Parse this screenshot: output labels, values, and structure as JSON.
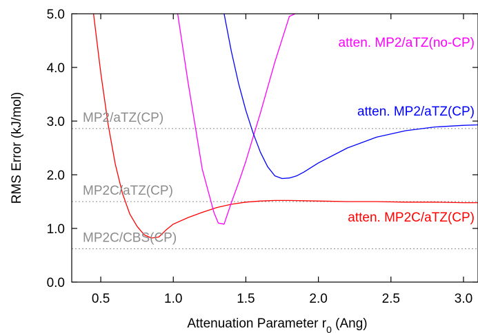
{
  "chart_data": {
    "type": "line",
    "title": "",
    "xlabel": "Attenuation Parameter r",
    "xlabel_sub": "0",
    "xlabel_unit": " (Ang)",
    "ylabel": "RMS Error (kJ/mol)",
    "xlim": [
      0.3,
      3.1
    ],
    "ylim": [
      0.0,
      5.0
    ],
    "xticks": [
      0.5,
      1.0,
      1.5,
      2.0,
      2.5,
      3.0
    ],
    "xtick_labels": [
      "0.5",
      "1.0",
      "1.5",
      "2.0",
      "2.5",
      "3.0"
    ],
    "yticks": [
      0.0,
      1.0,
      2.0,
      3.0,
      4.0,
      5.0
    ],
    "ytick_labels": [
      "0.0",
      "1.0",
      "2.0",
      "3.0",
      "4.0",
      "5.0"
    ],
    "grid": false,
    "reference_lines": [
      {
        "name": "MP2/aTZ(CP)",
        "y": 2.86,
        "color": "#8c8c8c"
      },
      {
        "name": "MP2C/aTZ(CP)",
        "y": 1.5,
        "color": "#8c8c8c"
      },
      {
        "name": "MP2C/CBS(CP)",
        "y": 0.62,
        "color": "#8c8c8c"
      }
    ],
    "series": [
      {
        "name": "atten. MP2C/aTZ(CP)",
        "color": "#ff0000",
        "x": [
          0.45,
          0.5,
          0.55,
          0.6,
          0.65,
          0.7,
          0.75,
          0.8,
          0.85,
          0.9,
          0.95,
          1.0,
          1.1,
          1.2,
          1.3,
          1.4,
          1.5,
          1.6,
          1.7,
          1.8,
          2.0,
          2.2,
          2.4,
          2.6,
          2.8,
          3.0,
          3.1
        ],
        "y": [
          5.0,
          3.9,
          2.95,
          2.2,
          1.65,
          1.27,
          1.04,
          0.88,
          0.82,
          0.84,
          0.97,
          1.08,
          1.2,
          1.3,
          1.39,
          1.45,
          1.49,
          1.51,
          1.52,
          1.52,
          1.51,
          1.5,
          1.5,
          1.49,
          1.49,
          1.48,
          1.48
        ]
      },
      {
        "name": "atten. MP2/aTZ(no-CP)",
        "color": "#ff00ff",
        "x": [
          1.03,
          1.1,
          1.2,
          1.28,
          1.31,
          1.35,
          1.4,
          1.45,
          1.5,
          1.55,
          1.6,
          1.7,
          1.8,
          1.84
        ],
        "y": [
          5.0,
          3.75,
          2.1,
          1.3,
          1.1,
          1.08,
          1.48,
          1.85,
          2.25,
          2.7,
          3.15,
          4.1,
          4.95,
          5.0
        ]
      },
      {
        "name": "atten. MP2/aTZ(CP)",
        "color": "#0000ff",
        "x": [
          1.35,
          1.4,
          1.45,
          1.5,
          1.55,
          1.6,
          1.65,
          1.7,
          1.75,
          1.8,
          1.85,
          1.9,
          2.0,
          2.2,
          2.4,
          2.6,
          2.8,
          3.0,
          3.1
        ],
        "y": [
          5.0,
          4.3,
          3.7,
          3.2,
          2.78,
          2.42,
          2.15,
          1.98,
          1.93,
          1.94,
          1.98,
          2.05,
          2.22,
          2.5,
          2.7,
          2.82,
          2.89,
          2.92,
          2.93
        ]
      }
    ]
  }
}
